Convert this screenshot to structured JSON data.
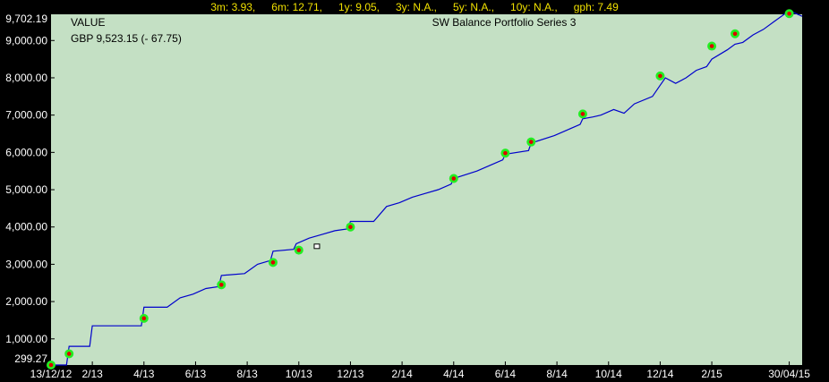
{
  "stats": {
    "m3": "3m: 3.93,",
    "m6": "6m: 12.71,",
    "y1": "1y: 9.05,",
    "y3": "3y: N.A.,",
    "y5": "5y: N.A.,",
    "y10": "10y: N.A.,",
    "gph": "gph: 7.49"
  },
  "chart_data": {
    "type": "line",
    "title": "SW Balance Portfolio Series 3",
    "value_label": "VALUE",
    "value_text": "GBP 9,523.15 (- 67.75)",
    "y_ticks": [
      "1,000.00",
      "2,000.00",
      "3,000.00",
      "4,000.00",
      "5,000.00",
      "6,000.00",
      "7,000.00",
      "8,000.00",
      "9,000.00"
    ],
    "y_min_label": "299.27",
    "y_max_label": "9,702.19",
    "ylim": [
      299.27,
      9702.19
    ],
    "x_labels": [
      "13/12/12",
      "2/13",
      "4/13",
      "6/13",
      "8/13",
      "10/13",
      "12/13",
      "2/14",
      "4/14",
      "6/14",
      "8/14",
      "10/14",
      "12/14",
      "2/15",
      "30/04/15"
    ],
    "x_months": [
      0,
      1.6,
      3.6,
      5.6,
      7.6,
      9.6,
      11.6,
      13.6,
      15.6,
      17.6,
      19.6,
      21.6,
      23.6,
      25.6,
      28.6
    ],
    "xlim": [
      0,
      29.1
    ],
    "series": [
      {
        "x": [
          0,
          0.6,
          0.7,
          1.5,
          1.6,
          3.5,
          3.6,
          4.5,
          5.0,
          5.5,
          6.0,
          6.5,
          6.6,
          7.5,
          8.0,
          8.5,
          8.6,
          9.4,
          9.5,
          10.0,
          10.5,
          11.0,
          11.5,
          11.6,
          12.5,
          13.0,
          13.5,
          14.0,
          14.5,
          15.0,
          15.5,
          15.6,
          16.5,
          17.0,
          17.5,
          17.6,
          18.5,
          18.6,
          19.5,
          20.0,
          20.5,
          20.6,
          21.0,
          21.3,
          21.8,
          22.2,
          22.6,
          23.3,
          23.6,
          23.8,
          24.2,
          24.6,
          25.0,
          25.4,
          25.6,
          26.2,
          26.5,
          26.8,
          27.2,
          27.6,
          28.0,
          28.6,
          29.1
        ],
        "y": [
          299.27,
          299.27,
          800,
          800,
          1350,
          1350,
          1850,
          1850,
          2100,
          2200,
          2350,
          2400,
          2700,
          2750,
          3000,
          3100,
          3350,
          3400,
          3550,
          3700,
          3800,
          3900,
          3950,
          4150,
          4150,
          4550,
          4650,
          4800,
          4900,
          5000,
          5150,
          5300,
          5500,
          5650,
          5800,
          5950,
          6050,
          6250,
          6450,
          6600,
          6750,
          6900,
          6950,
          7000,
          7150,
          7050,
          7300,
          7500,
          7800,
          8000,
          7850,
          8000,
          8200,
          8300,
          8500,
          8750,
          8900,
          8950,
          9150,
          9300,
          9500,
          9800,
          9650
        ]
      }
    ],
    "markers": {
      "x": [
        0,
        0.7,
        3.6,
        6.6,
        8.6,
        9.6,
        11.6,
        15.6,
        17.6,
        18.6,
        20.6,
        23.6,
        25.6,
        26.5,
        28.6
      ],
      "y": [
        299.27,
        600,
        1550,
        2450,
        3050,
        3380,
        4000,
        5300,
        5980,
        6280,
        7030,
        8050,
        8850,
        9180,
        9720
      ]
    },
    "note_marker": {
      "x": 10.3,
      "y": 3470
    },
    "colors": {
      "plot_bg": "#c4e0c4",
      "line": "#0000cc",
      "grid": "#000000",
      "marker_ring": "#22ee22",
      "marker_dot": "#dd0000"
    }
  }
}
